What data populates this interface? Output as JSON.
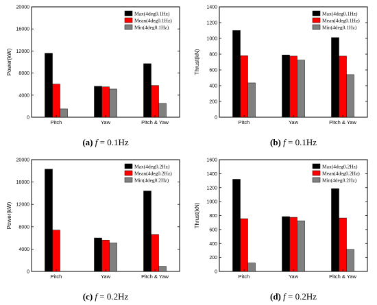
{
  "chart_data": [
    {
      "type": "bar",
      "panel": "a",
      "caption_letter": "(a)",
      "caption_var": "f",
      "caption_rest": " = 0.1Hz",
      "ylabel": "Power(kW)",
      "categories": [
        "Pitch",
        "Yaw",
        "Pitch & Yaw"
      ],
      "ylim": [
        0,
        20000
      ],
      "yticks": [
        0,
        4000,
        8000,
        12000,
        16000,
        20000
      ],
      "legend_position": "top-right",
      "series": [
        {
          "name": "Max(4deg0.1Hz)",
          "color": "#000000",
          "values": [
            11600,
            5600,
            9700
          ]
        },
        {
          "name": "Mean(4deg0.1Hz)",
          "color": "#ff0000",
          "values": [
            6000,
            5500,
            5750
          ]
        },
        {
          "name": "Min(4deg0.1Hz)",
          "color": "#808080",
          "values": [
            1500,
            5100,
            2500
          ]
        }
      ]
    },
    {
      "type": "bar",
      "panel": "b",
      "caption_letter": "(b)",
      "caption_var": "f",
      "caption_rest": " = 0.1Hz",
      "ylabel": "Thrust(kN)",
      "categories": [
        "Pitch",
        "Yaw",
        "Pitch & Yaw"
      ],
      "ylim": [
        0,
        1400
      ],
      "yticks": [
        0,
        200,
        400,
        600,
        800,
        1000,
        1200,
        1400
      ],
      "legend_position": "top-right",
      "series": [
        {
          "name": "Max(4deg0.1Hz)",
          "color": "#000000",
          "values": [
            1100,
            790,
            1010
          ]
        },
        {
          "name": "Mean(4deg0.1Hz)",
          "color": "#ff0000",
          "values": [
            780,
            775,
            775
          ]
        },
        {
          "name": "Min(4deg0.1Hz)",
          "color": "#808080",
          "values": [
            435,
            725,
            540
          ]
        }
      ]
    },
    {
      "type": "bar",
      "panel": "c",
      "caption_letter": "(c)",
      "caption_var": "f",
      "caption_rest": " = 0.2Hz",
      "ylabel": "Power(kW)",
      "categories": [
        "Pitch",
        "Yaw",
        "Pitch & Yaw"
      ],
      "ylim": [
        0,
        20000
      ],
      "yticks": [
        0,
        4000,
        8000,
        12000,
        16000,
        20000
      ],
      "legend_position": "top-right",
      "series": [
        {
          "name": "Max(4deg0.2Hz)",
          "color": "#000000",
          "values": [
            18300,
            6000,
            14400
          ]
        },
        {
          "name": "Mean(4deg0.2Hz)",
          "color": "#ff0000",
          "values": [
            7400,
            5600,
            6600
          ]
        },
        {
          "name": "Min(4deg0.2Hz)",
          "color": "#808080",
          "values": [
            0,
            5100,
            900
          ]
        }
      ]
    },
    {
      "type": "bar",
      "panel": "d",
      "caption_letter": "(d)",
      "caption_var": "f",
      "caption_rest": " = 0.2Hz",
      "ylabel": "Thrust(kN)",
      "categories": [
        "Pitch",
        "Yaw",
        "Pitch & Yaw"
      ],
      "ylim": [
        0,
        1600
      ],
      "yticks": [
        0,
        200,
        400,
        600,
        800,
        1000,
        1200,
        1400,
        1600
      ],
      "legend_position": "top-right",
      "series": [
        {
          "name": "Max(4deg0.2Hz)",
          "color": "#000000",
          "values": [
            1320,
            785,
            1185
          ]
        },
        {
          "name": "Mean(4deg0.2Hz)",
          "color": "#ff0000",
          "values": [
            755,
            775,
            765
          ]
        },
        {
          "name": "Min(4deg0.2Hz)",
          "color": "#808080",
          "values": [
            120,
            725,
            315
          ]
        }
      ]
    }
  ]
}
